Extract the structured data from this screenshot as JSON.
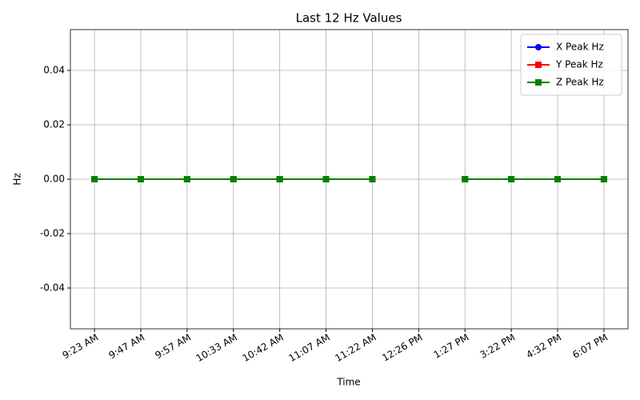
{
  "chart_data": {
    "type": "line",
    "title": "Last 12 Hz Values",
    "x_label": "Time",
    "y_label": "Hz",
    "categories": [
      "9:23 AM",
      "9:47 AM",
      "9:57 AM",
      "10:33 AM",
      "10:42 AM",
      "11:07 AM",
      "11:22 AM",
      "12:26 PM",
      "1:27 PM",
      "3:22 PM",
      "4:32 PM",
      "6:07 PM"
    ],
    "series": [
      {
        "name": "X Peak Hz",
        "color": "#0000ff",
        "marker": "circle",
        "values": [
          0,
          0,
          0,
          0,
          0,
          0,
          0,
          null,
          0,
          0,
          0,
          0
        ]
      },
      {
        "name": "Y Peak Hz",
        "color": "#ff0000",
        "marker": "square",
        "values": [
          0,
          0,
          0,
          0,
          0,
          0,
          0,
          null,
          0,
          0,
          0,
          0
        ]
      },
      {
        "name": "Z Peak Hz",
        "color": "#008000",
        "marker": "square",
        "values": [
          0,
          0,
          0,
          0,
          0,
          0,
          0,
          null,
          0,
          0,
          0,
          0
        ]
      }
    ],
    "ylim": [
      -0.055,
      0.055
    ],
    "yticks": [
      -0.04,
      -0.02,
      {
        "value": 0,
        "label": "0.00"
      },
      0.02,
      0.04
    ],
    "grid": true,
    "legend": "upper right"
  }
}
